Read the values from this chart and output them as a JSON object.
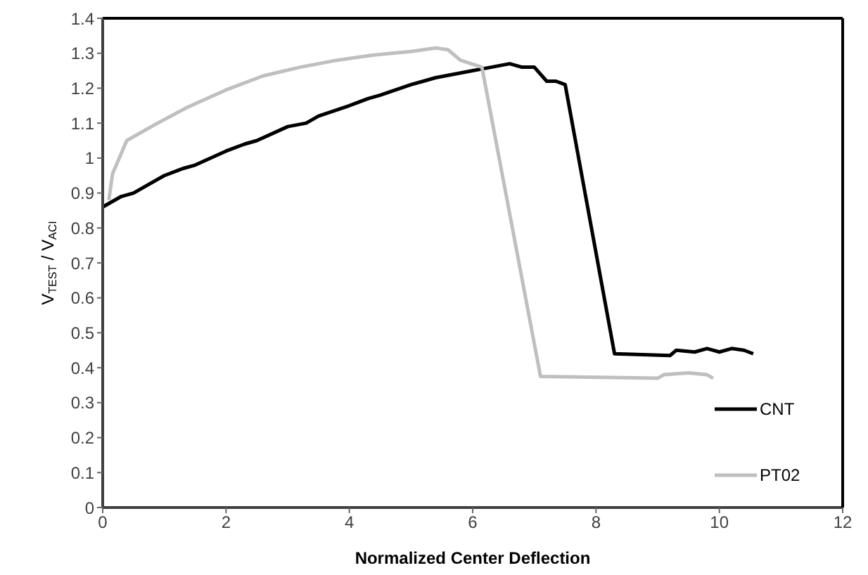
{
  "chart_data": {
    "type": "line",
    "xlabel": "Normalized Center Deflection",
    "ylabel": "V$_{TEST}$ / V$_{ACI}$",
    "xlim": [
      0,
      12
    ],
    "xticks": [
      0,
      2,
      4,
      6,
      8,
      10,
      12
    ],
    "ylim": [
      0,
      1.4
    ],
    "yticks": [
      0,
      0.1,
      0.2,
      0.3,
      0.4,
      0.5,
      0.6,
      0.7,
      0.8,
      0.9,
      1,
      1.1,
      1.2,
      1.3,
      1.4
    ],
    "legend": "bottom right",
    "marker": "none",
    "line_style": "solid",
    "series": [
      {
        "name": "CNT",
        "color": "#000000",
        "x": [
          0,
          0.3,
          0.5,
          1,
          1.3,
          1.5,
          2,
          2.3,
          2.5,
          3,
          3.3,
          3.5,
          4,
          4.3,
          4.5,
          5,
          5.2,
          5.4,
          5.7,
          6,
          6.3,
          6.6,
          6.8,
          7.0,
          7.2,
          7.35,
          7.5,
          8.3,
          9.2,
          9.3,
          9.6,
          9.8,
          10.0,
          10.2,
          10.4,
          10.55
        ],
        "values": [
          0.86,
          0.89,
          0.9,
          0.95,
          0.97,
          0.98,
          1.02,
          1.04,
          1.05,
          1.09,
          1.1,
          1.12,
          1.15,
          1.17,
          1.18,
          1.21,
          1.22,
          1.23,
          1.24,
          1.25,
          1.26,
          1.27,
          1.26,
          1.26,
          1.22,
          1.22,
          1.21,
          0.44,
          0.435,
          0.45,
          0.445,
          0.455,
          0.445,
          0.455,
          0.45,
          0.44
        ]
      },
      {
        "name": "PT02",
        "color": "#bfbfbf",
        "x": [
          0.1,
          0.16,
          0.39,
          0.84,
          1.37,
          2.0,
          2.6,
          3.2,
          3.8,
          4.4,
          5.0,
          5.4,
          5.6,
          5.8,
          6.15,
          7.1,
          9.0,
          9.1,
          9.5,
          9.8,
          9.9
        ],
        "values": [
          0.88,
          0.955,
          1.05,
          1.095,
          1.145,
          1.195,
          1.235,
          1.26,
          1.28,
          1.295,
          1.305,
          1.315,
          1.31,
          1.28,
          1.26,
          0.375,
          0.37,
          0.38,
          0.385,
          0.38,
          0.37
        ]
      }
    ]
  }
}
